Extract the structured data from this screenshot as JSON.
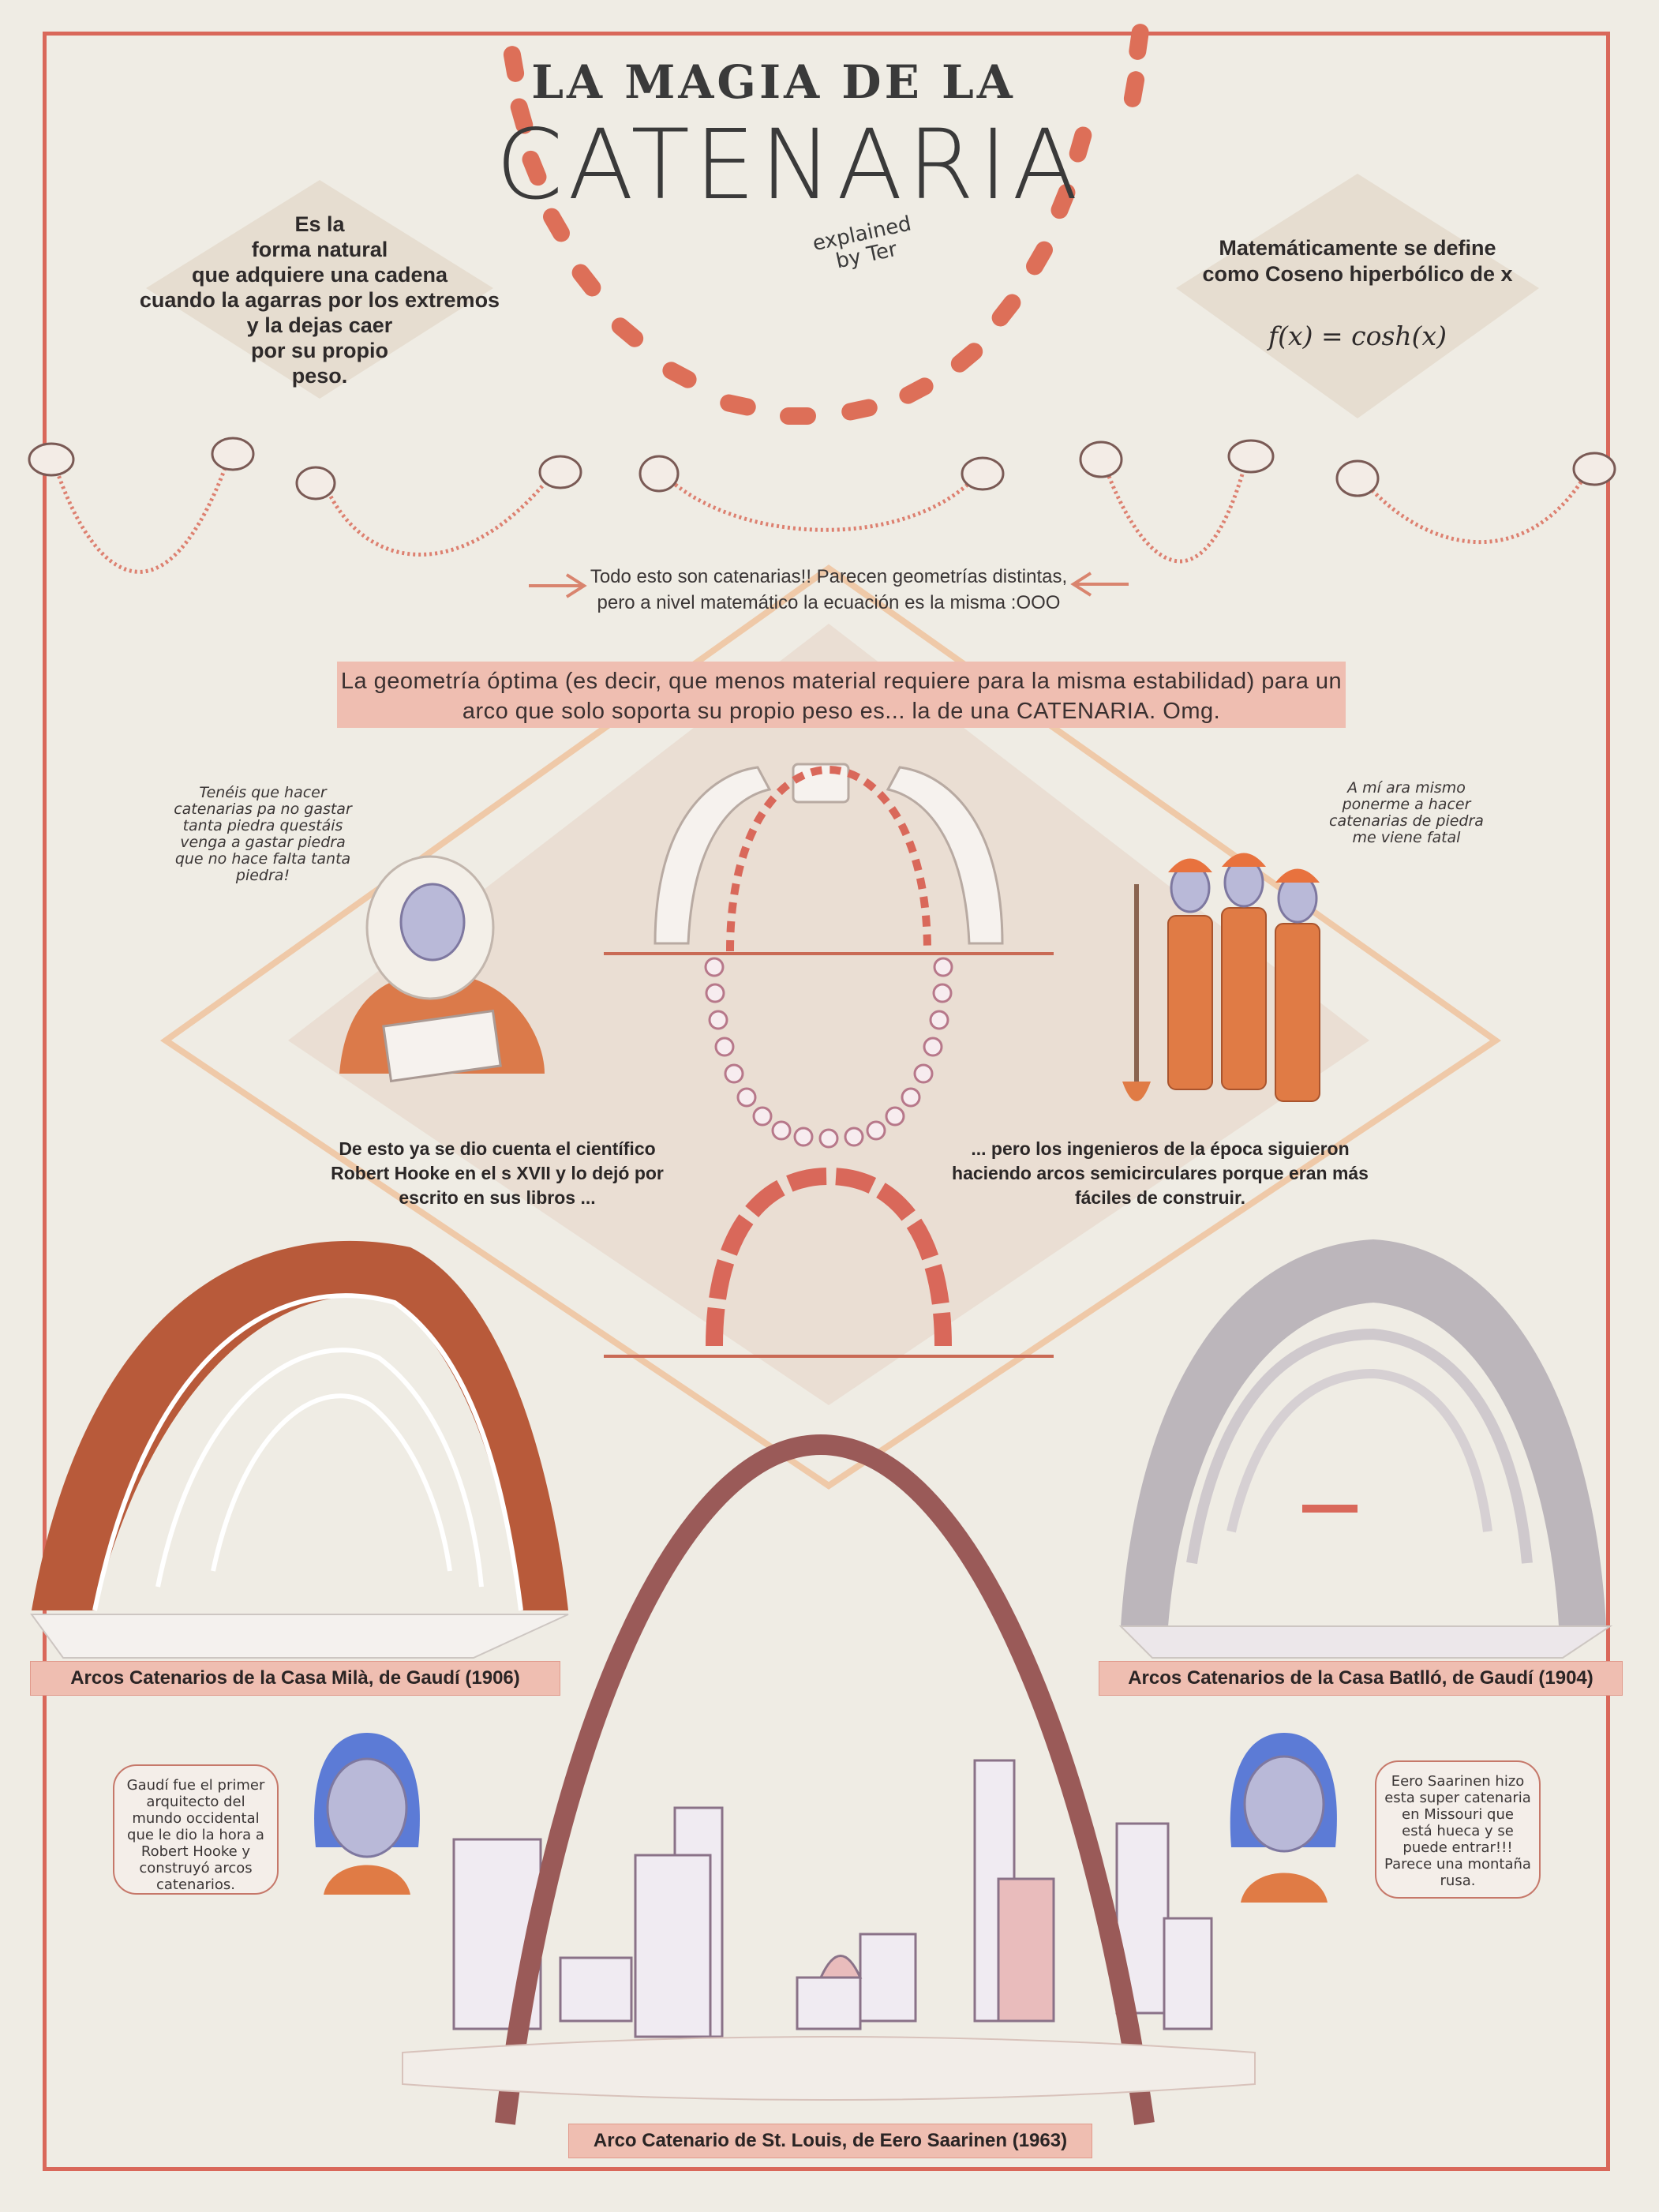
{
  "title": {
    "line1": "LA MAGIA DE LA",
    "line2": "CATENARIA",
    "byline": "explained by Ter"
  },
  "definition_left": {
    "lines": [
      "Es la",
      "forma natural",
      "que adquiere una cadena",
      "cuando la agarras por los extremos",
      "y la dejas caer",
      "por su propio",
      "peso."
    ]
  },
  "definition_right": {
    "text": "Matemáticamente se define como Coseno hiperbólico de x",
    "formula": "f(x) = cosh(x)"
  },
  "chains_note": "Todo esto son catenarias!! Parecen geometrías distintas, pero a nivel matemático la ecuación es la misma :OOO",
  "banner": "La geometría óptima  (es decir, que menos material requiere para la misma estabilidad) para un arco que solo soporta su propio peso es... la de una CATENARIA. Omg.",
  "speech_hooke": "Tenéis que hacer catenarias pa no gastar tanta piedra questáis venga a gastar piedra que no hace falta tanta piedra!",
  "speech_workers": "A mí ara mismo ponerme a hacer catenarias de piedra me viene fatal",
  "caption_hooke": "De esto ya se dio cuenta el científico Robert Hooke en el s XVII y lo dejó por escrito en sus libros ...",
  "caption_engineers": "... pero los ingenieros de la época siguieron haciendo arcos semicirculares porque eran más fáciles de construir.",
  "labels": {
    "mila": "Arcos Catenarios de la Casa Milà, de Gaudí (1906)",
    "batllo": "Arcos Catenarios de la Casa Batlló, de Gaudí (1904)",
    "stlouis": "Arco Catenario de St. Louis, de Eero Saarinen (1963)"
  },
  "bubble_left": "Gaudí fue el primer arquitecto del mundo occidental que le dio la hora a Robert Hooke y construyó arcos catenarios.",
  "bubble_right": "Eero Saarinen hizo esta super catenaria en Missouri que está hueca y se puede entrar!!! Parece una montaña rusa.",
  "colors": {
    "background": "#efece4",
    "frame": "#d9685a",
    "accent": "#e07058",
    "banner": "#efbeb1",
    "brick": "#b65a3a",
    "arch": "#9a5a58"
  }
}
